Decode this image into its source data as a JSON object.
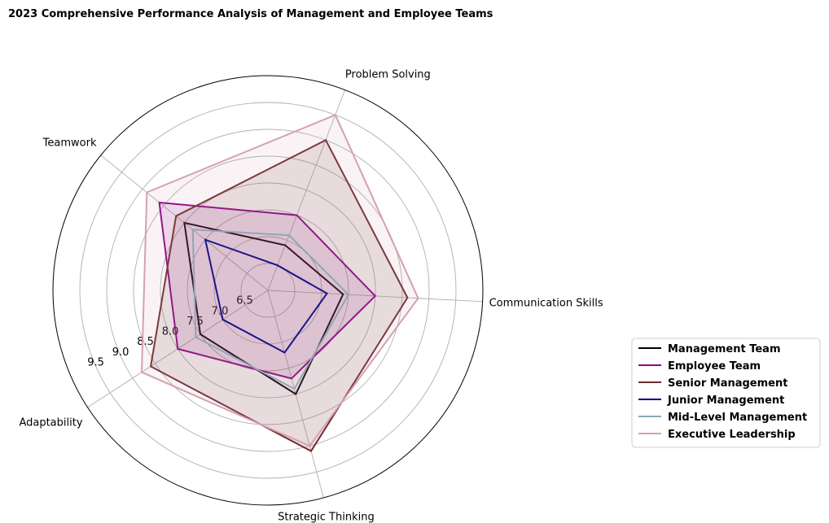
{
  "chart_data": {
    "type": "radar",
    "title": "2023 Comprehensive Performance Analysis of Management and Employee Teams",
    "categories": [
      "Communication Skills",
      "Problem Solving",
      "Teamwork",
      "Adaptability",
      "Strategic Thinking"
    ],
    "rlim": [
      6.0,
      10.0
    ],
    "rticks": [
      6.5,
      7.0,
      7.5,
      8.0,
      8.5,
      9.0,
      9.5
    ],
    "rtick_labels": [
      "6.5",
      "7.0",
      "7.5",
      "8.0",
      "8.5",
      "9.0",
      "9.5"
    ],
    "grid": true,
    "legend_position": "right",
    "series": [
      {
        "name": "Management Team",
        "values": [
          7.4,
          6.9,
          8.0,
          7.5,
          8.0
        ],
        "color": "#000000",
        "fill": false
      },
      {
        "name": "Employee Team",
        "values": [
          8.0,
          7.5,
          8.6,
          8.0,
          7.7
        ],
        "color": "#8b008b",
        "fill": true,
        "fill_opacity": 0.13
      },
      {
        "name": "Senior Management",
        "values": [
          8.6,
          9.0,
          8.2,
          8.6,
          9.1
        ],
        "color": "#6e2b2b",
        "fill": true,
        "fill_opacity": 0.13
      },
      {
        "name": "Junior Management",
        "values": [
          7.1,
          6.5,
          7.5,
          7.0,
          7.2
        ],
        "color": "#000080",
        "fill": false
      },
      {
        "name": "Mid-Level Management",
        "values": [
          7.5,
          7.1,
          7.8,
          7.6,
          7.9
        ],
        "color": "#8aa6b8",
        "fill": false
      },
      {
        "name": "Executive Leadership",
        "values": [
          8.8,
          9.5,
          8.9,
          8.8,
          9.0
        ],
        "color": "#d4a0b4",
        "fill": true,
        "fill_opacity": 0.13
      }
    ]
  }
}
